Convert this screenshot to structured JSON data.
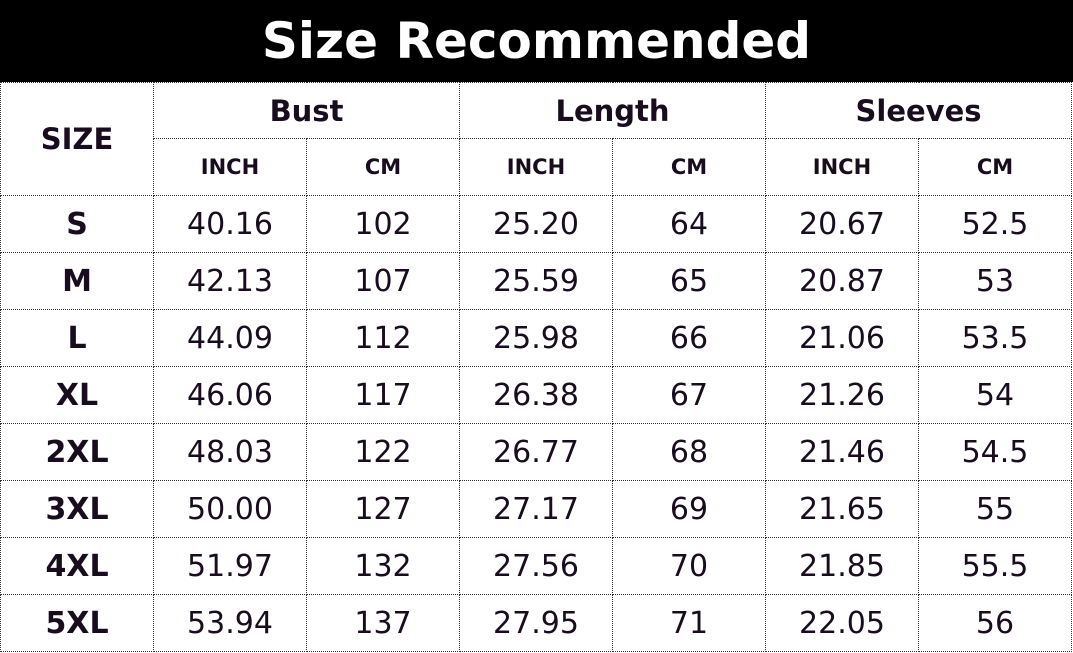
{
  "title": "Size Recommended",
  "header": {
    "size_label": "SIZE",
    "groups": [
      "Bust",
      "Length",
      "Sleeves"
    ],
    "units": [
      "INCH",
      "CM",
      "INCH",
      "CM",
      "INCH",
      "CM"
    ]
  },
  "rows": [
    [
      "S",
      "40.16",
      "102",
      "25.20",
      "64",
      "20.67",
      "52.5"
    ],
    [
      "M",
      "42.13",
      "107",
      "25.59",
      "65",
      "20.87",
      "53"
    ],
    [
      "L",
      "44.09",
      "112",
      "25.98",
      "66",
      "21.06",
      "53.5"
    ],
    [
      "XL",
      "46.06",
      "117",
      "26.38",
      "67",
      "21.26",
      "54"
    ],
    [
      "2XL",
      "48.03",
      "122",
      "26.77",
      "68",
      "21.46",
      "54.5"
    ],
    [
      "3XL",
      "50.00",
      "127",
      "27.17",
      "69",
      "21.65",
      "55"
    ],
    [
      "4XL",
      "51.97",
      "132",
      "27.56",
      "70",
      "21.85",
      "55.5"
    ],
    [
      "5XL",
      "53.94",
      "137",
      "27.95",
      "71",
      "22.05",
      "56"
    ]
  ]
}
